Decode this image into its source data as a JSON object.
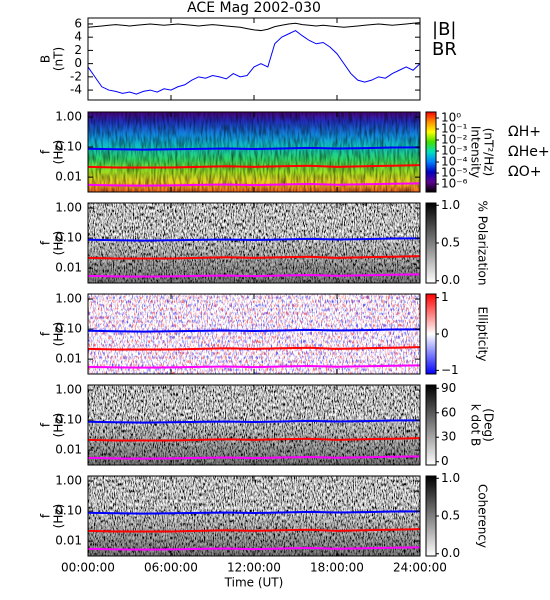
{
  "chart_data": [
    {
      "type": "line",
      "title": "ACE Mag 2002-030",
      "ylabel": [
        "B",
        "(nT)"
      ],
      "xlim": [
        0,
        24
      ],
      "xticks": [
        0,
        6,
        12,
        18,
        24
      ],
      "ylim": [
        -5.5,
        6.9
      ],
      "yticks": [
        6,
        4,
        2,
        0,
        -2,
        -4
      ],
      "legend": "right",
      "x": [
        0,
        0.5,
        1,
        1.5,
        2,
        2.5,
        3,
        3.5,
        4,
        4.5,
        5,
        5.5,
        6,
        6.5,
        7,
        7.5,
        8,
        8.5,
        9,
        9.5,
        10,
        10.5,
        11,
        11.5,
        12,
        12.5,
        13,
        13.5,
        14,
        14.5,
        15,
        15.5,
        16,
        16.5,
        17,
        17.5,
        18,
        18.5,
        19,
        19.5,
        20,
        20.5,
        21,
        21.5,
        22,
        22.5,
        23,
        23.5,
        24
      ],
      "series": [
        {
          "name": "|B|",
          "color": "#000000",
          "values": [
            5.5,
            5.6,
            5.7,
            5.8,
            5.9,
            5.8,
            5.7,
            5.8,
            5.9,
            6,
            5.9,
            5.8,
            5.9,
            6,
            5.9,
            5.8,
            5.7,
            5.8,
            5.9,
            5.8,
            5.7,
            5.6,
            5.5,
            5.3,
            5.1,
            5,
            5.2,
            5.6,
            5.8,
            6,
            6.1,
            5.9,
            5.8,
            5.7,
            5.8,
            5.7,
            5.6,
            5.5,
            5.6,
            5.7,
            5.8,
            5.9,
            6,
            5.9,
            5.8,
            5.9,
            6,
            6.1,
            6.2
          ]
        },
        {
          "name": "BR",
          "color": "#0000ff",
          "values": [
            -0.5,
            -2,
            -3.5,
            -4,
            -4.2,
            -4.5,
            -4.3,
            -4.6,
            -4.2,
            -4,
            -4.3,
            -3.8,
            -4,
            -3.5,
            -3.2,
            -2.5,
            -2,
            -2.2,
            -1.8,
            -2,
            -2.3,
            -1.5,
            -2,
            -1.8,
            -0.5,
            0,
            -0.5,
            3,
            4,
            4.5,
            5,
            4.2,
            3.5,
            3,
            3.2,
            2.5,
            1.5,
            0,
            -1.5,
            -2.5,
            -2.8,
            -2.5,
            -2,
            -2.2,
            -1.5,
            -1,
            -0.5,
            -1,
            0
          ]
        }
      ]
    },
    {
      "type": "spectrogram",
      "ylabel": [
        "f",
        "(Hz)"
      ],
      "ylog": true,
      "xlim": [
        0,
        24
      ],
      "xticks": [
        0,
        6,
        12,
        18,
        24
      ],
      "ylim": [
        0.0032,
        1.47
      ],
      "yticks": [
        {
          "value": 1,
          "label": "1.00"
        },
        {
          "value": 0.1,
          "label": "0.10"
        },
        {
          "value": 0.01,
          "label": "0.01"
        }
      ],
      "legend": "right",
      "colorbar": {
        "label": [
          "Intensity",
          "(nT²/Hz)"
        ],
        "log": true,
        "lim": [
          1.9e-07,
          3.5
        ],
        "ticks": [
          {
            "value": 1,
            "label": "10⁰"
          },
          {
            "value": 0.1,
            "label": "10⁻¹"
          },
          {
            "value": 0.01,
            "label": "10⁻²"
          },
          {
            "value": 0.001,
            "label": "10⁻³"
          },
          {
            "value": 0.0001,
            "label": "10⁻⁴"
          },
          {
            "value": 1e-05,
            "label": "10⁻⁵"
          },
          {
            "value": 1e-06,
            "label": "10⁻⁶"
          }
        ],
        "colors": [
          "#ff0000",
          "#ff9000",
          "#ffff00",
          "#40e000",
          "#00e0c0",
          "#0080ff",
          "#0000c0",
          "#600090",
          "#000000"
        ]
      },
      "x": [
        0,
        2,
        4,
        6,
        8,
        10,
        12,
        14,
        16,
        18,
        20,
        22,
        24
      ],
      "series": [
        {
          "name": "ΩH+",
          "color": "#0000ff",
          "values": [
            0.088,
            0.085,
            0.082,
            0.085,
            0.087,
            0.09,
            0.086,
            0.09,
            0.094,
            0.09,
            0.092,
            0.097,
            0.098
          ]
        },
        {
          "name": "ΩHe+",
          "color": "#ff0000",
          "values": [
            0.022,
            0.021,
            0.021,
            0.021,
            0.022,
            0.023,
            0.022,
            0.023,
            0.024,
            0.022,
            0.023,
            0.024,
            0.025
          ]
        },
        {
          "name": "ΩO+",
          "color": "#ff00ff",
          "values": [
            0.0055,
            0.0053,
            0.0052,
            0.0053,
            0.0055,
            0.0057,
            0.0054,
            0.0057,
            0.0059,
            0.0056,
            0.0058,
            0.006,
            0.0062
          ]
        }
      ]
    },
    {
      "type": "spectrogram",
      "ylabel": [
        "f",
        "(Hz)"
      ],
      "ylog": true,
      "xlim": [
        0,
        24
      ],
      "xticks": [
        0,
        6,
        12,
        18,
        24
      ],
      "ylim": [
        0.0032,
        1.47
      ],
      "yticks": [
        {
          "value": 1,
          "label": "1.00"
        },
        {
          "value": 0.1,
          "label": "0.10"
        },
        {
          "value": 0.01,
          "label": "0.01"
        }
      ],
      "colorbar": {
        "label": [
          "% Polarization"
        ],
        "lim": [
          -0.03,
          1.03
        ],
        "ticks": [
          {
            "value": 1,
            "label": "1.0"
          },
          0.5,
          {
            "value": 0,
            "label": "0.0"
          }
        ],
        "colors": [
          "#000000",
          "#ffffff"
        ]
      },
      "x": [
        0,
        2,
        4,
        6,
        8,
        10,
        12,
        14,
        16,
        18,
        20,
        22,
        24
      ],
      "series": [
        {
          "color": "#0000ff",
          "values": [
            0.088,
            0.085,
            0.082,
            0.085,
            0.087,
            0.09,
            0.086,
            0.09,
            0.094,
            0.09,
            0.092,
            0.097,
            0.098
          ]
        },
        {
          "color": "#ff0000",
          "values": [
            0.022,
            0.021,
            0.021,
            0.021,
            0.022,
            0.023,
            0.022,
            0.023,
            0.024,
            0.022,
            0.023,
            0.024,
            0.025
          ]
        },
        {
          "color": "#ff00ff",
          "values": [
            0.0055,
            0.0053,
            0.0052,
            0.0053,
            0.0055,
            0.0057,
            0.0054,
            0.0057,
            0.0059,
            0.0056,
            0.0058,
            0.006,
            0.0062
          ]
        }
      ]
    },
    {
      "type": "spectrogram",
      "ylabel": [
        "f",
        "(Hz)"
      ],
      "ylog": true,
      "xlim": [
        0,
        24
      ],
      "xticks": [
        0,
        6,
        12,
        18,
        24
      ],
      "ylim": [
        0.0032,
        1.47
      ],
      "yticks": [
        {
          "value": 1,
          "label": "1.00"
        },
        {
          "value": 0.1,
          "label": "0.10"
        },
        {
          "value": 0.01,
          "label": "0.01"
        }
      ],
      "colorbar": {
        "label": [
          "Ellipticity"
        ],
        "lim": [
          -1.1,
          1.1
        ],
        "ticks": [
          1,
          0,
          {
            "value": -1,
            "label": "−1"
          }
        ],
        "colors": [
          "#ff0000",
          "#ffffff",
          "#0000ff"
        ]
      },
      "x": [
        0,
        2,
        4,
        6,
        8,
        10,
        12,
        14,
        16,
        18,
        20,
        22,
        24
      ],
      "series": [
        {
          "color": "#0000ff",
          "values": [
            0.088,
            0.085,
            0.082,
            0.085,
            0.087,
            0.09,
            0.086,
            0.09,
            0.094,
            0.09,
            0.092,
            0.097,
            0.098
          ]
        },
        {
          "color": "#ff0000",
          "values": [
            0.022,
            0.021,
            0.021,
            0.021,
            0.022,
            0.023,
            0.022,
            0.023,
            0.024,
            0.022,
            0.023,
            0.024,
            0.025
          ]
        },
        {
          "color": "#ff00ff",
          "values": [
            0.0055,
            0.0053,
            0.0052,
            0.0053,
            0.0055,
            0.0057,
            0.0054,
            0.0057,
            0.0059,
            0.0056,
            0.0058,
            0.006,
            0.0062
          ]
        }
      ]
    },
    {
      "type": "spectrogram",
      "ylabel": [
        "f",
        "(Hz)"
      ],
      "ylog": true,
      "xlim": [
        0,
        24
      ],
      "xticks": [
        0,
        6,
        12,
        18,
        24
      ],
      "ylim": [
        0.0032,
        1.47
      ],
      "yticks": [
        {
          "value": 1,
          "label": "1.00"
        },
        {
          "value": 0.1,
          "label": "0.10"
        },
        {
          "value": 0.01,
          "label": "0.01"
        }
      ],
      "colorbar": {
        "label": [
          "k dot B",
          "(Deg)"
        ],
        "lim": [
          -4,
          94
        ],
        "ticks": [
          90,
          60,
          30,
          0
        ],
        "colors": [
          "#000000",
          "#ffffff"
        ]
      },
      "x": [
        0,
        2,
        4,
        6,
        8,
        10,
        12,
        14,
        16,
        18,
        20,
        22,
        24
      ],
      "series": [
        {
          "color": "#0000ff",
          "values": [
            0.088,
            0.085,
            0.082,
            0.085,
            0.087,
            0.09,
            0.086,
            0.09,
            0.094,
            0.09,
            0.092,
            0.097,
            0.098
          ]
        },
        {
          "color": "#ff0000",
          "values": [
            0.022,
            0.021,
            0.021,
            0.021,
            0.022,
            0.023,
            0.022,
            0.023,
            0.024,
            0.022,
            0.023,
            0.024,
            0.025
          ]
        },
        {
          "color": "#ff00ff",
          "values": [
            0.0055,
            0.0053,
            0.0052,
            0.0053,
            0.0055,
            0.0057,
            0.0054,
            0.0057,
            0.0059,
            0.0056,
            0.0058,
            0.006,
            0.0062
          ]
        }
      ]
    },
    {
      "type": "spectrogram",
      "ylabel": [
        "f",
        "(Hz)"
      ],
      "ylog": true,
      "xlabel": "Time (UT)",
      "xlim": [
        0,
        24
      ],
      "xticks": [
        {
          "value": 0,
          "label": "00:00:00"
        },
        {
          "value": 6,
          "label": "06:00:00"
        },
        {
          "value": 12,
          "label": "12:00:00"
        },
        {
          "value": 18,
          "label": "18:00:00"
        },
        {
          "value": 24,
          "label": "24:00:00"
        }
      ],
      "ylim": [
        0.0032,
        1.47
      ],
      "yticks": [
        {
          "value": 1,
          "label": "1.00"
        },
        {
          "value": 0.1,
          "label": "0.10"
        },
        {
          "value": 0.01,
          "label": "0.01"
        }
      ],
      "colorbar": {
        "label": [
          "Coherency"
        ],
        "lim": [
          -0.03,
          1.03
        ],
        "ticks": [
          {
            "value": 1,
            "label": "1.0"
          },
          0.5,
          {
            "value": 0,
            "label": "0.0"
          }
        ],
        "colors": [
          "#000000",
          "#ffffff"
        ]
      },
      "x": [
        0,
        2,
        4,
        6,
        8,
        10,
        12,
        14,
        16,
        18,
        20,
        22,
        24
      ],
      "series": [
        {
          "color": "#0000ff",
          "values": [
            0.088,
            0.085,
            0.082,
            0.085,
            0.087,
            0.09,
            0.086,
            0.09,
            0.094,
            0.09,
            0.092,
            0.097,
            0.098
          ]
        },
        {
          "color": "#ff0000",
          "values": [
            0.022,
            0.021,
            0.021,
            0.021,
            0.022,
            0.023,
            0.022,
            0.023,
            0.024,
            0.022,
            0.023,
            0.024,
            0.025
          ]
        },
        {
          "color": "#ff00ff",
          "values": [
            0.0055,
            0.0053,
            0.0052,
            0.0053,
            0.0055,
            0.0057,
            0.0054,
            0.0057,
            0.0059,
            0.0056,
            0.0058,
            0.006,
            0.0062
          ]
        }
      ]
    }
  ]
}
